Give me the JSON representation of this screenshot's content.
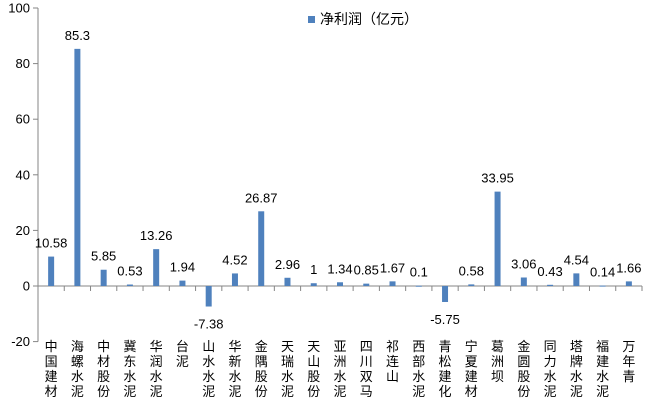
{
  "chart_data": {
    "type": "bar",
    "categories": [
      "中国建材",
      "海螺水泥",
      "中材股份",
      "冀东水泥",
      "华润水泥",
      "台泥",
      "山水水泥",
      "华新水泥",
      "金隅股份",
      "天瑞水泥",
      "天山股份",
      "亚洲水泥",
      "四川双马",
      "祁连山",
      "西部水泥",
      "青松建化",
      "宁夏建材",
      "葛洲坝",
      "金圆股份",
      "同力水泥",
      "塔牌水泥",
      "福建水泥",
      "万年青"
    ],
    "series": [
      {
        "name": "净利润（亿元）",
        "values": [
          10.58,
          85.3,
          5.85,
          0.53,
          13.26,
          1.94,
          -7.38,
          4.52,
          26.87,
          2.96,
          1,
          1.34,
          0.85,
          1.67,
          0.1,
          -5.75,
          0.58,
          33.95,
          3.06,
          0.43,
          4.54,
          0.14,
          1.66
        ],
        "labels": [
          "10.58",
          "85.3",
          "5.85",
          "0.53",
          "13.26",
          "1.94",
          "-7.38",
          "4.52",
          "26.87",
          "2.96",
          "1",
          "1.34",
          "0.85",
          "1.67",
          "0.1",
          "-5.75",
          "0.58",
          "33.95",
          "3.06",
          "0.43",
          "4.54",
          "0.14",
          "1.66"
        ],
        "color": "#4F81BD"
      }
    ],
    "yticks": [
      "-20",
      "0",
      "20",
      "40",
      "60",
      "80",
      "100"
    ],
    "ylim": [
      -20,
      100
    ],
    "grid": false,
    "legend_position": "top-right",
    "axis_color": "#868686"
  }
}
